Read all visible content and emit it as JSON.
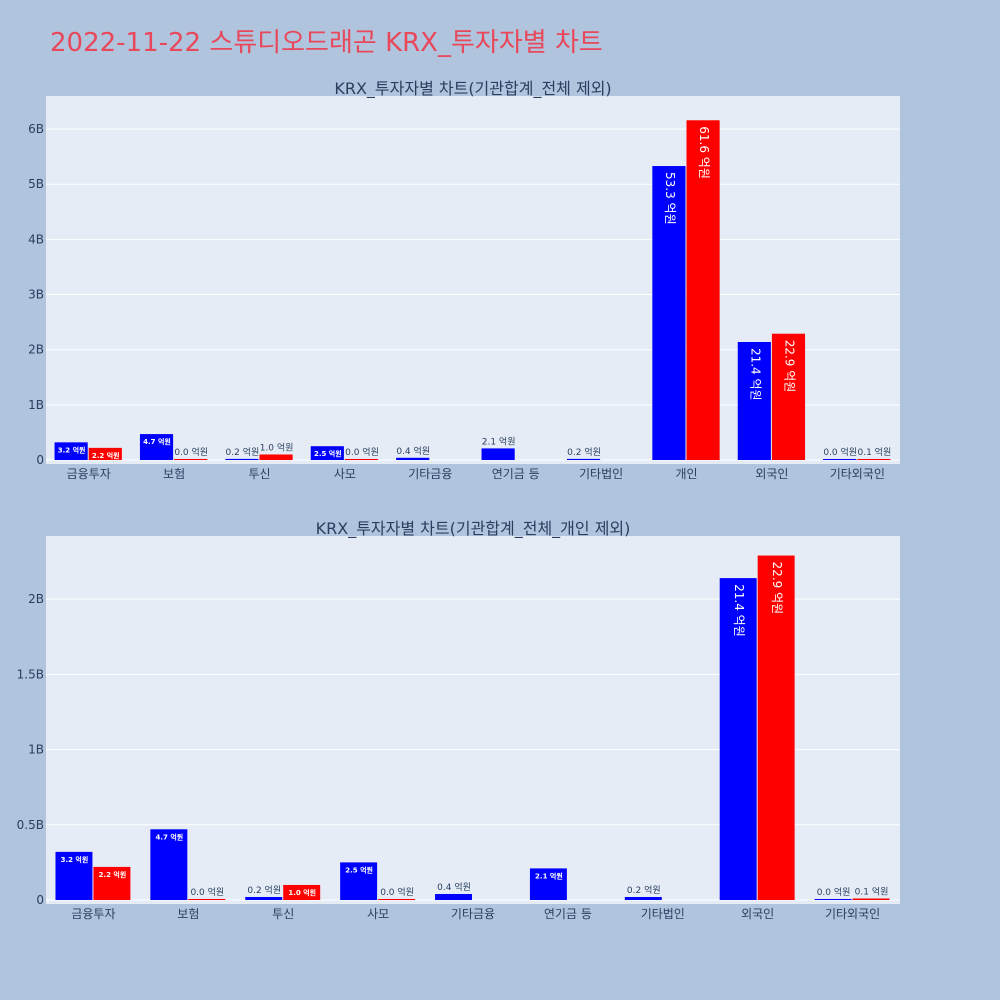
{
  "page_title": "2022-11-22 스튜디오드래곤 KRX_투자자별 차트",
  "colors": {
    "buy": "#0000ff",
    "sell": "#ff0000",
    "plot_bg": "#e5ecf6",
    "page_bg": "#b0c4de",
    "title": "#e8485a"
  },
  "chart_data": [
    {
      "type": "bar",
      "title": "KRX_투자자별 차트(기관합계_전체 제외)",
      "categories": [
        "금융투자",
        "보험",
        "투신",
        "사모",
        "기타금융",
        "연기금 등",
        "기타법인",
        "개인",
        "외국인",
        "기타외국인"
      ],
      "ylim": [
        0,
        6.6
      ],
      "yticks": [
        0,
        1,
        2,
        3,
        4,
        5,
        6
      ],
      "ytick_labels": [
        "0",
        "1B",
        "2B",
        "3B",
        "4B",
        "5B",
        "6B"
      ],
      "grid": true,
      "series": [
        {
          "color": "#0000ff",
          "values": [
            0.32,
            0.47,
            0.02,
            0.25,
            0.04,
            0.21,
            0.02,
            5.33,
            2.14,
            0.0
          ],
          "labels": [
            "3.2 억원",
            "4.7 억원",
            "0.2 억원",
            "2.5 억원",
            "0.4 억원",
            "2.1 억원",
            "0.2 억원",
            "53.3 억원",
            "21.4 억원",
            "0.0 억원"
          ]
        },
        {
          "color": "#ff0000",
          "values": [
            0.22,
            0.0,
            0.1,
            0.0,
            null,
            null,
            null,
            6.16,
            2.29,
            0.01
          ],
          "labels": [
            "2.2 억원",
            "0.0 억원",
            "1.0 억원",
            "0.0 억원",
            "",
            "",
            "",
            "61.6 억원",
            "22.9 억원",
            "0.1 억원"
          ]
        }
      ]
    },
    {
      "type": "bar",
      "title": "KRX_투자자별 차트(기관합계_전체_개인 제외)",
      "categories": [
        "금융투자",
        "보험",
        "투신",
        "사모",
        "기타금융",
        "연기금 등",
        "기타법인",
        "외국인",
        "기타외국인"
      ],
      "ylim": [
        0,
        2.42
      ],
      "yticks": [
        0,
        0.5,
        1,
        1.5,
        2
      ],
      "ytick_labels": [
        "0",
        "0.5B",
        "1B",
        "1.5B",
        "2B"
      ],
      "grid": true,
      "series": [
        {
          "color": "#0000ff",
          "values": [
            0.32,
            0.47,
            0.02,
            0.25,
            0.04,
            0.21,
            0.02,
            2.14,
            0.0
          ],
          "labels": [
            "3.2 억원",
            "4.7 억원",
            "0.2 억원",
            "2.5 억원",
            "0.4 억원",
            "2.1 억원",
            "0.2 억원",
            "21.4 억원",
            "0.0 억원"
          ]
        },
        {
          "color": "#ff0000",
          "values": [
            0.22,
            0.0,
            0.1,
            0.0,
            null,
            null,
            null,
            2.29,
            0.01
          ],
          "labels": [
            "2.2 억원",
            "0.0 억원",
            "1.0 억원",
            "0.0 억원",
            "",
            "",
            "",
            "22.9 억원",
            "0.1 억원"
          ]
        }
      ]
    }
  ]
}
